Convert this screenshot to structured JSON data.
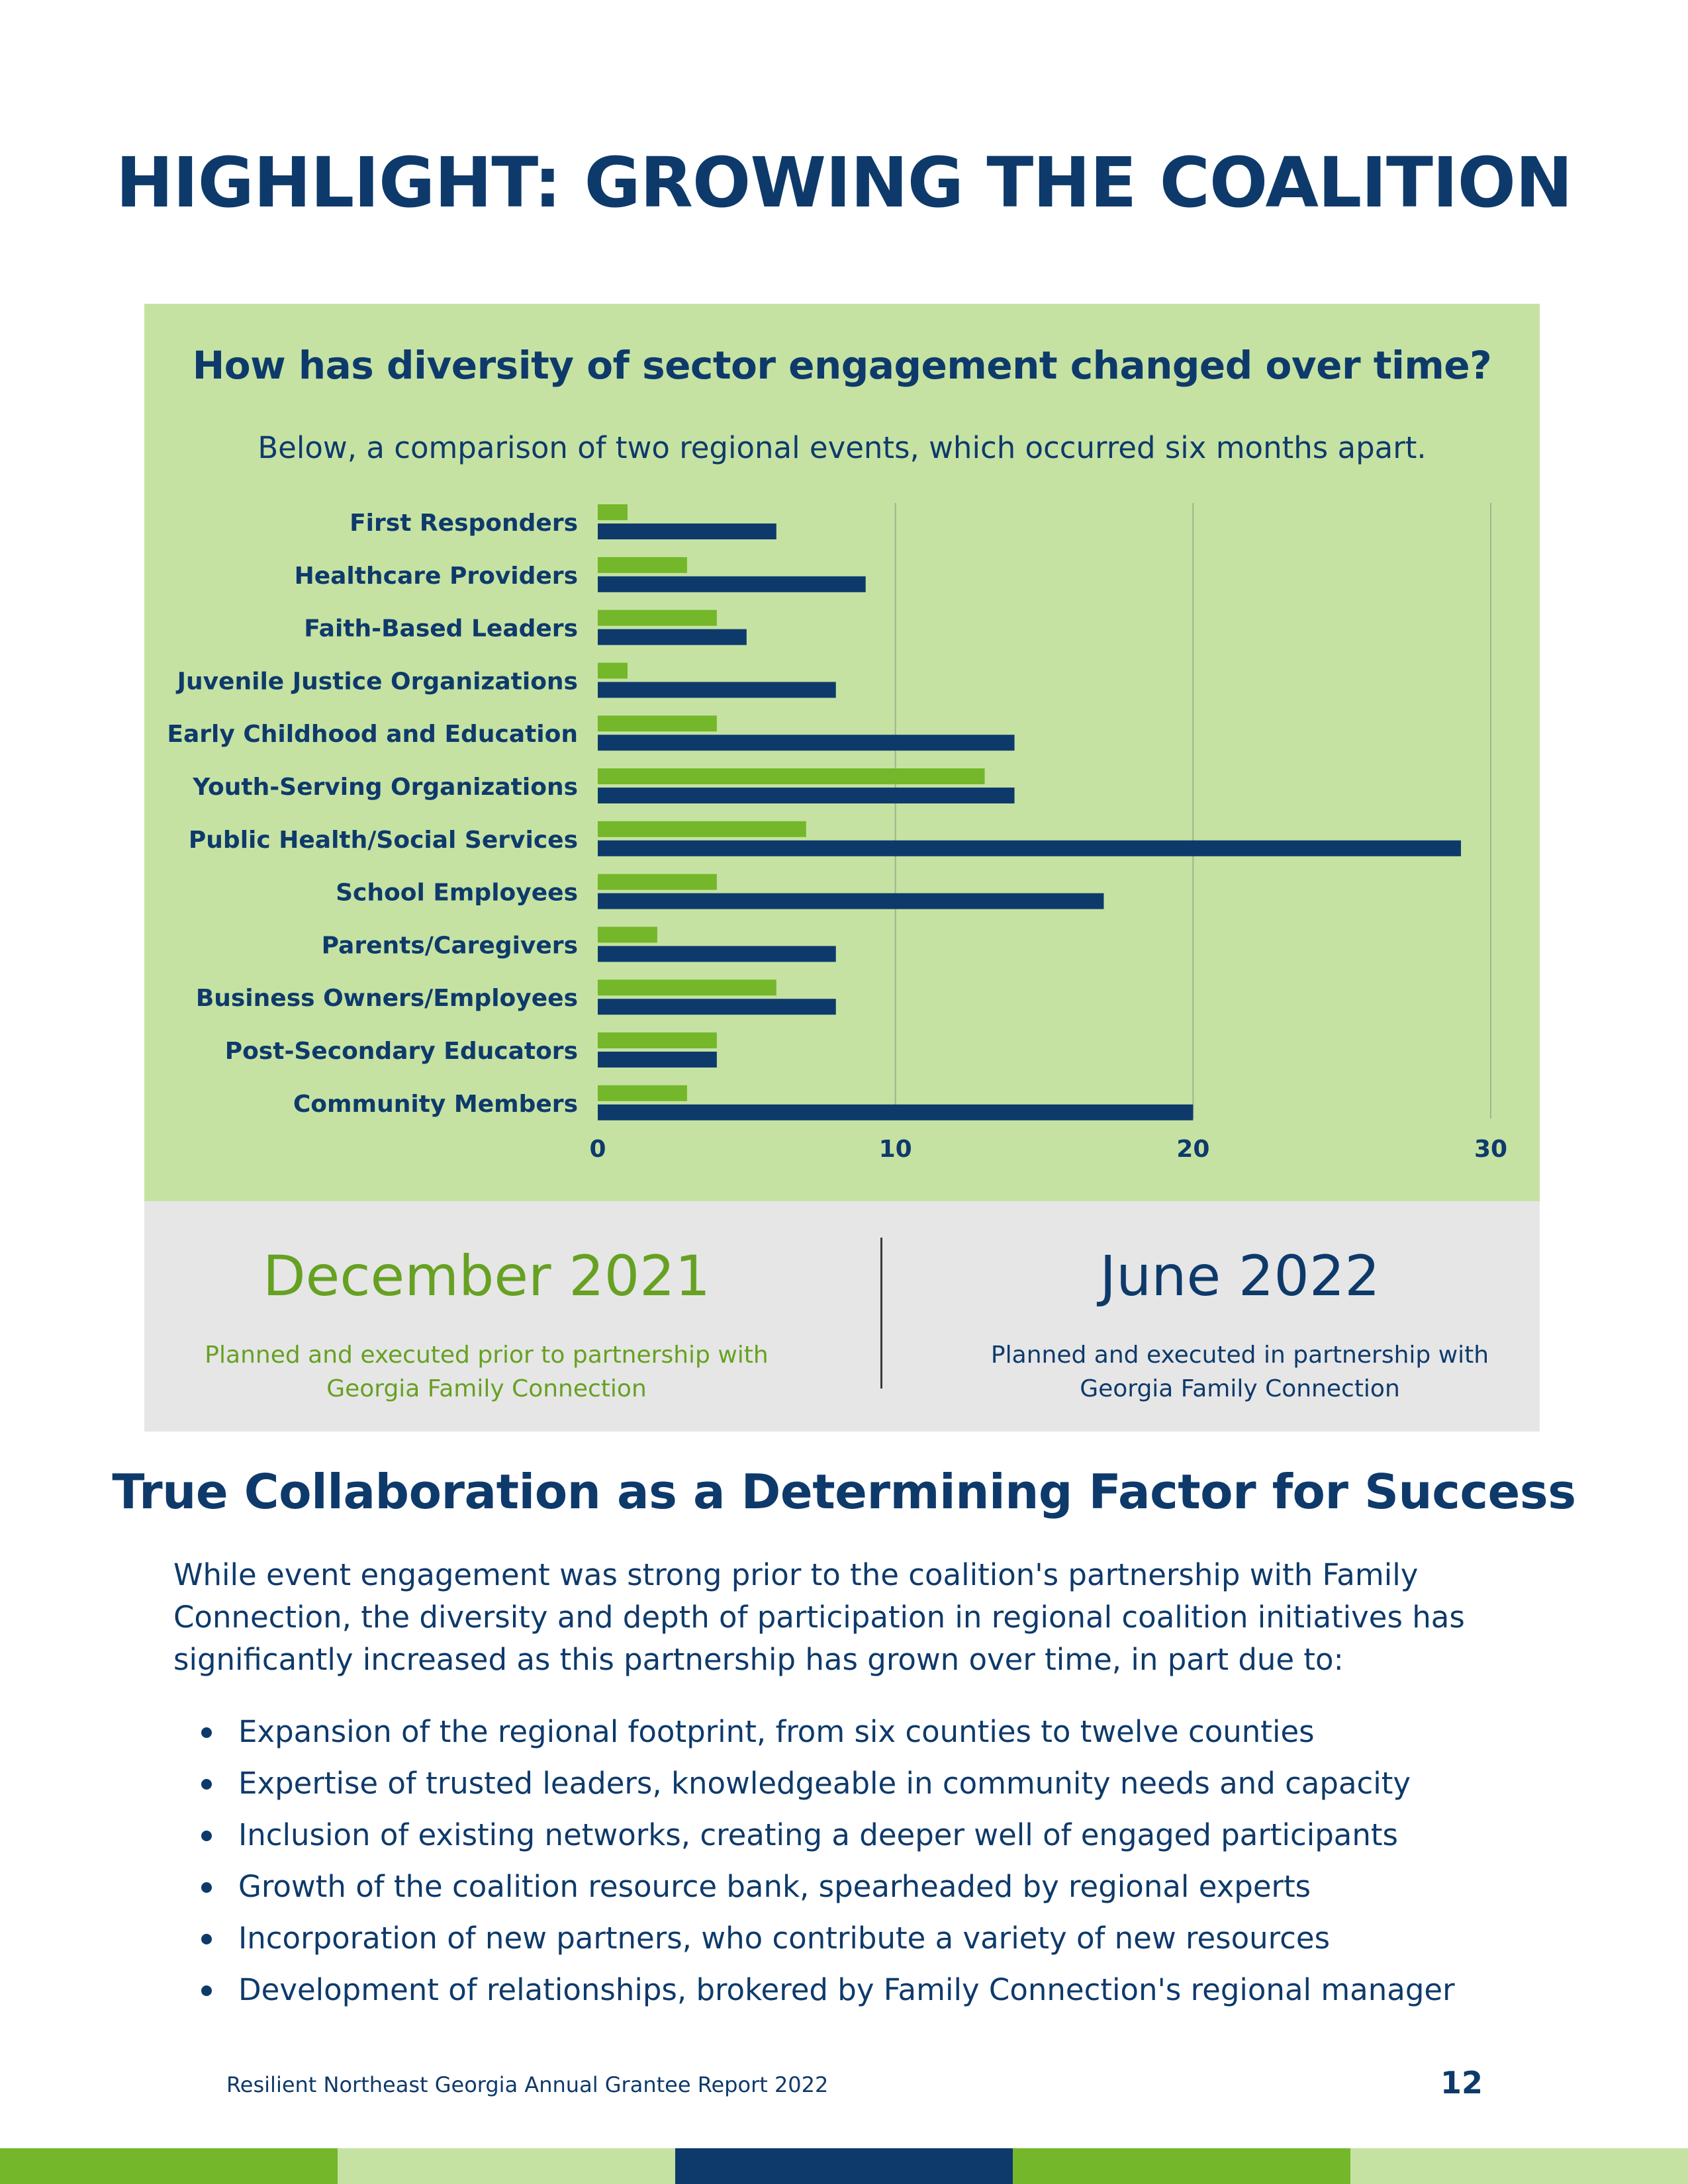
{
  "page": {
    "title": "HIGHLIGHT: GROWING THE COALITION",
    "chart_heading": "How has diversity of sector engagement changed over time?",
    "chart_subtitle": "Below, a comparison of two regional events, which occurred six months apart.",
    "periods": [
      {
        "title": "December 2021",
        "description": "Planned and executed prior to partnership with Georgia Family Connection"
      },
      {
        "title": "June 2022",
        "description": "Planned and executed in partnership with Georgia Family Connection"
      }
    ],
    "section_heading": "True Collaboration as a Determining Factor for Success",
    "body": "While event engagement was strong prior to the coalition's partnership with Family Connection, the diversity and depth of participation in regional coalition initiatives has significantly increased as this partnership has grown over time, in part due to:",
    "bullets": [
      "Expansion of the regional footprint, from six counties to twelve counties",
      "Expertise of trusted leaders, knowledgeable in community needs and capacity",
      "Inclusion of existing networks, creating a deeper well of engaged participants",
      "Growth of the coalition resource bank, spearheaded by regional experts",
      "Incorporation of new partners, who contribute a variety of new resources",
      "Development of relationships, brokered by Family Connection's regional manager"
    ],
    "footer": "Resilient Northeast Georgia Annual Grantee Report 2022",
    "page_number": "12"
  },
  "colors": {
    "navy": "#0e3a6b",
    "green": "#74b72a",
    "dark_green": "#66a122",
    "light_green": "#c5e2a3",
    "grey": "#e6e6e6"
  },
  "chart_data": {
    "type": "bar",
    "orientation": "horizontal",
    "title": "How has diversity of sector engagement changed over time?",
    "categories": [
      "First Responders",
      "Healthcare Providers",
      "Faith-Based Leaders",
      "Juvenile Justice Organizations",
      "Early Childhood and Education",
      "Youth-Serving Organizations",
      "Public Health/Social Services",
      "School Employees",
      "Parents/Caregivers",
      "Business Owners/Employees",
      "Post-Secondary Educators",
      "Community Members"
    ],
    "series": [
      {
        "name": "December 2021",
        "color": "#74b72a",
        "values": [
          1,
          3,
          4,
          1,
          4,
          13,
          7,
          4,
          2,
          6,
          4,
          3
        ]
      },
      {
        "name": "June 2022",
        "color": "#0e3a6b",
        "values": [
          6,
          9,
          5,
          8,
          14,
          14,
          29,
          17,
          8,
          8,
          4,
          20
        ]
      }
    ],
    "xlim": [
      0,
      30
    ],
    "xticks": [
      0,
      10,
      20,
      30
    ],
    "grid": true,
    "legend": "below"
  }
}
